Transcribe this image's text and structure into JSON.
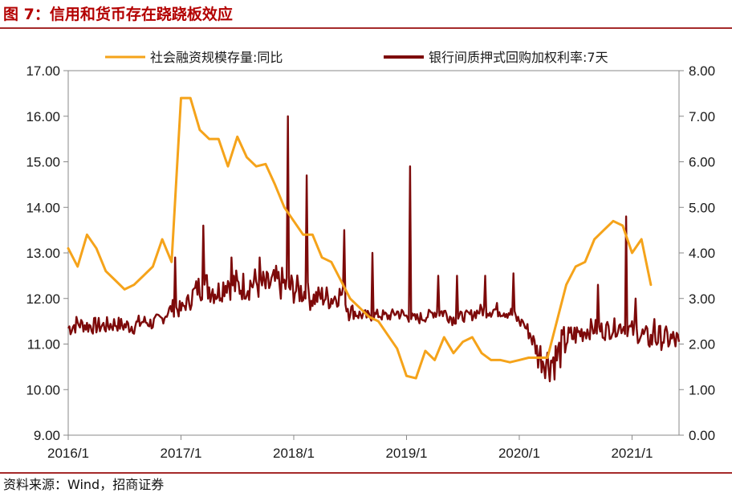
{
  "figure": {
    "title": "图 7：信用和货币存在跷跷板效应",
    "source": "资料来源：Wind，招商证券"
  },
  "chart_data": {
    "type": "line",
    "title": "",
    "xlabel": "",
    "x_tick_labels": [
      "2016/1",
      "2017/1",
      "2018/1",
      "2019/1",
      "2020/1",
      "2021/1"
    ],
    "x_range": [
      "2016/1",
      "2021/6"
    ],
    "y_left": {
      "label": "",
      "lim": [
        9.0,
        17.0
      ],
      "tick_labels": [
        "9.00",
        "10.00",
        "11.00",
        "12.00",
        "13.00",
        "14.00",
        "15.00",
        "16.00",
        "17.00"
      ]
    },
    "y_right": {
      "label": "",
      "lim": [
        0.0,
        8.0
      ],
      "tick_labels": [
        "0.00",
        "1.00",
        "2.00",
        "3.00",
        "4.00",
        "5.00",
        "6.00",
        "7.00",
        "8.00"
      ]
    },
    "grid": false,
    "legend_position": "top",
    "series": [
      {
        "name": "社会融资规模存量:同比",
        "axis": "left",
        "color": "#f5a31a",
        "points": [
          [
            "2016/1",
            13.1
          ],
          [
            "2016/2",
            12.7
          ],
          [
            "2016/3",
            13.4
          ],
          [
            "2016/4",
            13.1
          ],
          [
            "2016/5",
            12.6
          ],
          [
            "2016/6",
            12.4
          ],
          [
            "2016/7",
            12.2
          ],
          [
            "2016/8",
            12.3
          ],
          [
            "2016/9",
            12.5
          ],
          [
            "2016/10",
            12.7
          ],
          [
            "2016/11",
            13.3
          ],
          [
            "2016/12",
            12.8
          ],
          [
            "2017/1",
            16.4
          ],
          [
            "2017/2",
            16.4
          ],
          [
            "2017/3",
            15.7
          ],
          [
            "2017/4",
            15.5
          ],
          [
            "2017/5",
            15.5
          ],
          [
            "2017/6",
            14.9
          ],
          [
            "2017/7",
            15.55
          ],
          [
            "2017/8",
            15.1
          ],
          [
            "2017/9",
            14.9
          ],
          [
            "2017/10",
            14.95
          ],
          [
            "2017/11",
            14.5
          ],
          [
            "2017/12",
            14.0
          ],
          [
            "2018/1",
            13.7
          ],
          [
            "2018/2",
            13.4
          ],
          [
            "2018/3",
            13.4
          ],
          [
            "2018/4",
            12.9
          ],
          [
            "2018/5",
            12.8
          ],
          [
            "2018/6",
            12.4
          ],
          [
            "2018/7",
            12.0
          ],
          [
            "2018/8",
            11.8
          ],
          [
            "2018/9",
            11.6
          ],
          [
            "2018/10",
            11.5
          ],
          [
            "2018/11",
            11.2
          ],
          [
            "2018/12",
            10.9
          ],
          [
            "2019/1",
            10.3
          ],
          [
            "2019/2",
            10.25
          ],
          [
            "2019/3",
            10.85
          ],
          [
            "2019/4",
            10.65
          ],
          [
            "2019/5",
            11.15
          ],
          [
            "2019/6",
            10.8
          ],
          [
            "2019/7",
            11.05
          ],
          [
            "2019/8",
            11.15
          ],
          [
            "2019/9",
            10.8
          ],
          [
            "2019/10",
            10.65
          ],
          [
            "2019/11",
            10.65
          ],
          [
            "2019/12",
            10.6
          ],
          [
            "2020/1",
            10.65
          ],
          [
            "2020/2",
            10.7
          ],
          [
            "2020/3",
            10.7
          ],
          [
            "2020/4",
            10.7
          ],
          [
            "2020/5",
            11.5
          ],
          [
            "2020/6",
            12.3
          ],
          [
            "2020/7",
            12.7
          ],
          [
            "2020/8",
            12.8
          ],
          [
            "2020/9",
            13.3
          ],
          [
            "2020/10",
            13.5
          ],
          [
            "2020/11",
            13.7
          ],
          [
            "2020/12",
            13.6
          ],
          [
            "2021/1",
            13.0
          ],
          [
            "2021/2",
            13.3
          ],
          [
            "2021/3",
            12.3
          ]
        ]
      },
      {
        "name": "银行间质押式回购加权利率:7天",
        "axis": "right",
        "color": "#7d0a0a",
        "points": [
          [
            "2016/1",
            2.35
          ],
          [
            "2016/2",
            2.45
          ],
          [
            "2016/3",
            2.4
          ],
          [
            "2016/4",
            2.4
          ],
          [
            "2016/5",
            2.4
          ],
          [
            "2016/6",
            2.45
          ],
          [
            "2016/7",
            2.4
          ],
          [
            "2016/8",
            2.4
          ],
          [
            "2016/9",
            2.5
          ],
          [
            "2016/10",
            2.45
          ],
          [
            "2016/11",
            2.55
          ],
          [
            "2016/12",
            2.8
          ],
          [
            "2017/1",
            2.75
          ],
          [
            "2017/2",
            3.0
          ],
          [
            "2017/3",
            3.3
          ],
          [
            "2017/4",
            3.25
          ],
          [
            "2017/5",
            3.15
          ],
          [
            "2017/6",
            3.4
          ],
          [
            "2017/7",
            3.25
          ],
          [
            "2017/8",
            3.3
          ],
          [
            "2017/9",
            3.35
          ],
          [
            "2017/10",
            3.25
          ],
          [
            "2017/11",
            3.35
          ],
          [
            "2017/12",
            3.3
          ],
          [
            "2018/1",
            3.2
          ],
          [
            "2018/2",
            3.15
          ],
          [
            "2018/3",
            3.0
          ],
          [
            "2018/4",
            3.05
          ],
          [
            "2018/5",
            3.0
          ],
          [
            "2018/6",
            3.1
          ],
          [
            "2018/7",
            2.75
          ],
          [
            "2018/8",
            2.65
          ],
          [
            "2018/9",
            2.6
          ],
          [
            "2018/10",
            2.65
          ],
          [
            "2018/11",
            2.6
          ],
          [
            "2018/12",
            2.7
          ],
          [
            "2019/1",
            2.6
          ],
          [
            "2019/2",
            2.55
          ],
          [
            "2019/3",
            2.6
          ],
          [
            "2019/4",
            2.7
          ],
          [
            "2019/5",
            2.7
          ],
          [
            "2019/6",
            2.55
          ],
          [
            "2019/7",
            2.6
          ],
          [
            "2019/8",
            2.65
          ],
          [
            "2019/9",
            2.75
          ],
          [
            "2019/10",
            2.75
          ],
          [
            "2019/11",
            2.75
          ],
          [
            "2019/12",
            2.7
          ],
          [
            "2020/1",
            2.5
          ],
          [
            "2020/2",
            2.3
          ],
          [
            "2020/3",
            1.8
          ],
          [
            "2020/4",
            1.6
          ],
          [
            "2020/5",
            1.7
          ],
          [
            "2020/6",
            2.1
          ],
          [
            "2020/7",
            2.2
          ],
          [
            "2020/8",
            2.3
          ],
          [
            "2020/9",
            2.35
          ],
          [
            "2020/10",
            2.3
          ],
          [
            "2020/11",
            2.35
          ],
          [
            "2020/12",
            2.4
          ],
          [
            "2021/1",
            2.3
          ],
          [
            "2021/2",
            2.2
          ],
          [
            "2021/3",
            2.1
          ],
          [
            "2021/4",
            2.15
          ],
          [
            "2021/5",
            2.1
          ],
          [
            "2021/6",
            2.05
          ]
        ],
        "spikes": [
          [
            "2016/12",
            3.9
          ],
          [
            "2017/3",
            4.6
          ],
          [
            "2017/6",
            3.9
          ],
          [
            "2017/9",
            3.9
          ],
          [
            "2017/12",
            7.0
          ],
          [
            "2018/2",
            5.7
          ],
          [
            "2018/6",
            4.5
          ],
          [
            "2018/9",
            4.0
          ],
          [
            "2019/1",
            5.9
          ],
          [
            "2019/4",
            3.5
          ],
          [
            "2019/6",
            3.5
          ],
          [
            "2019/9",
            3.5
          ],
          [
            "2019/12",
            3.55
          ],
          [
            "2020/1",
            2.5
          ],
          [
            "2020/9",
            3.3
          ],
          [
            "2020/12",
            4.8
          ],
          [
            "2021/1",
            3.0
          ],
          [
            "2021/3",
            2.55
          ]
        ]
      }
    ]
  }
}
